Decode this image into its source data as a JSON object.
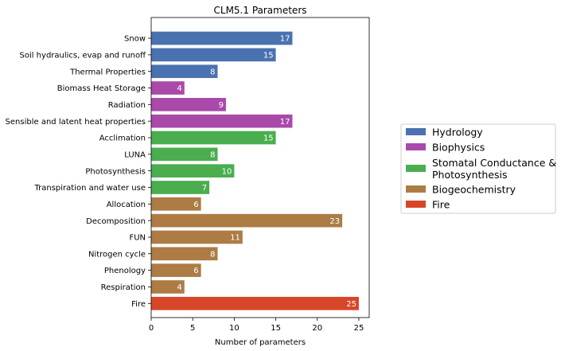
{
  "chart_data": {
    "type": "bar",
    "orientation": "horizontal",
    "title": "CLM5.1 Parameters",
    "xlabel": "Number of parameters",
    "ylabel": "",
    "xlim": [
      0,
      26.25
    ],
    "xticks": [
      0,
      5,
      10,
      15,
      20,
      25
    ],
    "grid": false,
    "legend_position": "right",
    "groups": [
      {
        "name": "Hydrology",
        "color": "#4a72b0"
      },
      {
        "name": "Biophysics",
        "color": "#a94aab"
      },
      {
        "name": "Stomatal Conductance &\nPhotosynthesis",
        "color": "#4aae4f"
      },
      {
        "name": "Biogeochemistry",
        "color": "#ad7c45"
      },
      {
        "name": "Fire",
        "color": "#d8462a"
      }
    ],
    "categories": [
      "Snow",
      "Soil hydraulics, evap and runoff",
      "Thermal Properties",
      "Biomass Heat Storage",
      "Radiation",
      "Sensible and latent heat properties",
      "Acclimation",
      "LUNA",
      "Photosynthesis",
      "Transpiration and water use",
      "Allocation",
      "Decomposition",
      "FUN",
      "Nitrogen cycle",
      "Phenology",
      "Respiration",
      "Fire"
    ],
    "values": [
      17,
      15,
      8,
      4,
      9,
      17,
      15,
      8,
      10,
      7,
      6,
      23,
      11,
      8,
      6,
      4,
      25
    ],
    "group_index": [
      0,
      0,
      0,
      1,
      1,
      1,
      2,
      2,
      2,
      2,
      3,
      3,
      3,
      3,
      3,
      3,
      4
    ]
  }
}
